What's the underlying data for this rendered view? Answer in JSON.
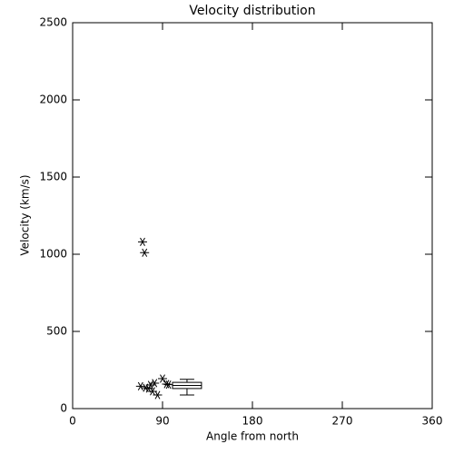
{
  "chart_data": {
    "type": "scatter",
    "title": "Velocity distribution",
    "x_label": "Angle from north",
    "y_label": "Velocity (km/s)",
    "x": [
      70,
      72,
      68,
      73,
      76,
      78,
      80,
      82,
      85,
      90,
      94,
      96
    ],
    "values": [
      1080,
      1010,
      145,
      135,
      130,
      153,
      112,
      165,
      88,
      194,
      159,
      155
    ],
    "color": "#000000",
    "box": {
      "x_left": 100,
      "x_right": 129,
      "min": 88,
      "q1": 130,
      "median": 150,
      "q3": 170,
      "max": 190
    },
    "xlim": [
      0,
      360
    ],
    "xticks": [
      0,
      90,
      180,
      270,
      360
    ],
    "ylim": [
      0,
      2500
    ],
    "yticks": [
      0,
      500,
      1000,
      1500,
      2000,
      2500
    ]
  }
}
